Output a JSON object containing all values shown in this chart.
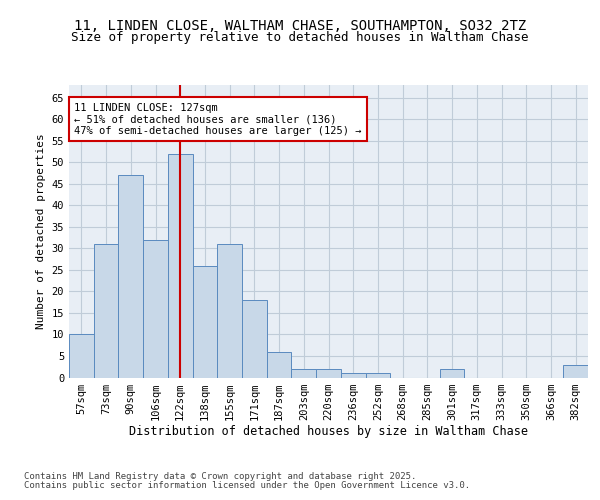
{
  "title1": "11, LINDEN CLOSE, WALTHAM CHASE, SOUTHAMPTON, SO32 2TZ",
  "title2": "Size of property relative to detached houses in Waltham Chase",
  "xlabel": "Distribution of detached houses by size in Waltham Chase",
  "ylabel": "Number of detached properties",
  "footer1": "Contains HM Land Registry data © Crown copyright and database right 2025.",
  "footer2": "Contains public sector information licensed under the Open Government Licence v3.0.",
  "bar_labels": [
    "57sqm",
    "73sqm",
    "90sqm",
    "106sqm",
    "122sqm",
    "138sqm",
    "155sqm",
    "171sqm",
    "187sqm",
    "203sqm",
    "220sqm",
    "236sqm",
    "252sqm",
    "268sqm",
    "285sqm",
    "301sqm",
    "317sqm",
    "333sqm",
    "350sqm",
    "366sqm",
    "382sqm"
  ],
  "bar_values": [
    10,
    31,
    47,
    32,
    52,
    26,
    31,
    18,
    6,
    2,
    2,
    1,
    1,
    0,
    0,
    2,
    0,
    0,
    0,
    0,
    3
  ],
  "bar_color": "#c8d8e8",
  "bar_edge_color": "#5a8abf",
  "grid_color": "#c0ccd8",
  "bg_color": "#e8eef5",
  "vline_x": 4.0,
  "vline_color": "#cc0000",
  "annotation_text": "11 LINDEN CLOSE: 127sqm\n← 51% of detached houses are smaller (136)\n47% of semi-detached houses are larger (125) →",
  "annotation_box_color": "#cc0000",
  "ylim": [
    0,
    68
  ],
  "yticks": [
    0,
    5,
    10,
    15,
    20,
    25,
    30,
    35,
    40,
    45,
    50,
    55,
    60,
    65
  ],
  "title1_fontsize": 10,
  "title2_fontsize": 9,
  "xlabel_fontsize": 8.5,
  "ylabel_fontsize": 8,
  "tick_fontsize": 7.5,
  "annotation_fontsize": 7.5,
  "footer_fontsize": 6.5
}
